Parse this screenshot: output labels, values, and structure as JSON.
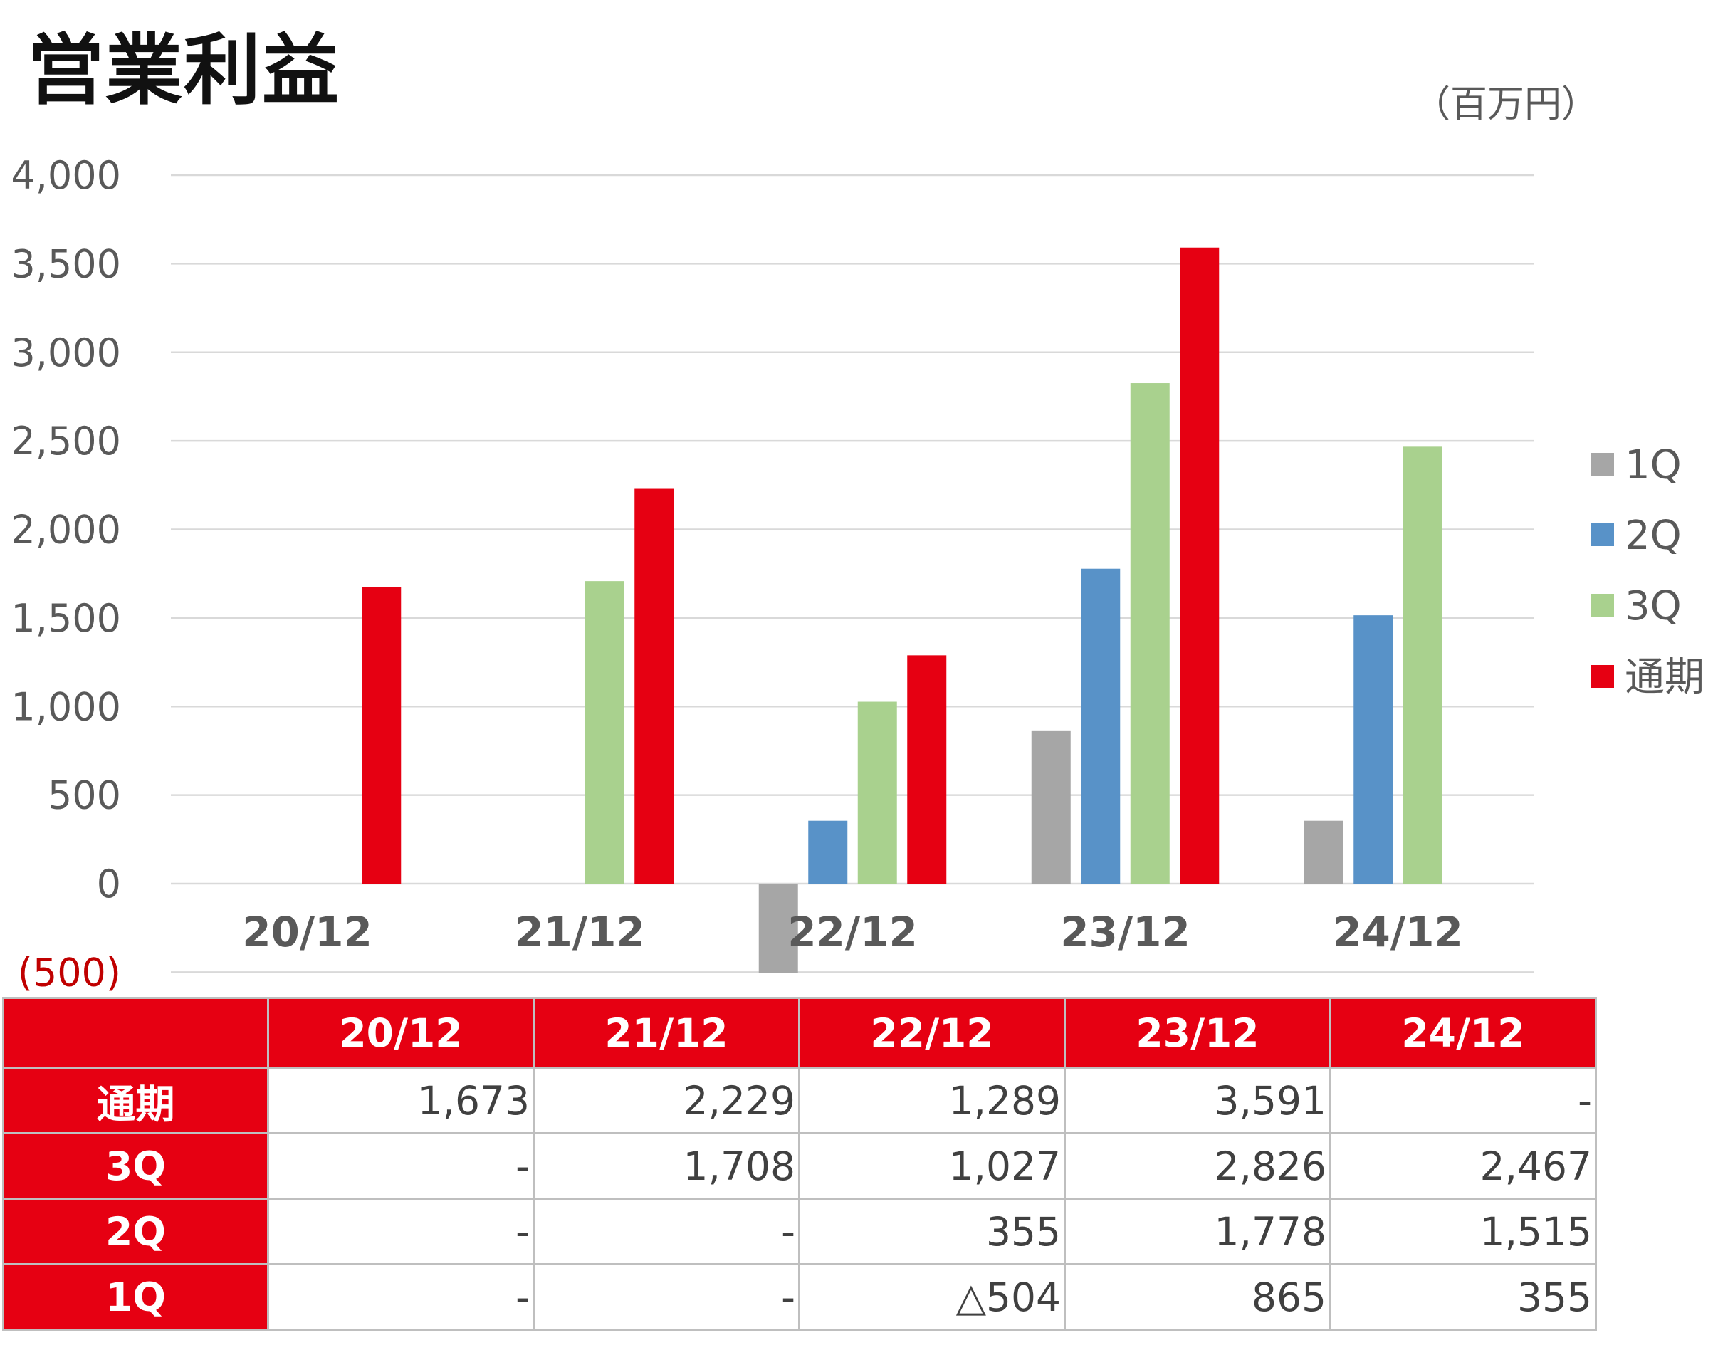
{
  "title": "営業利益",
  "unit_label": "（百万円）",
  "chart_data": {
    "type": "bar",
    "categories": [
      "20/12",
      "21/12",
      "22/12",
      "23/12",
      "24/12"
    ],
    "series": [
      {
        "name": "1Q",
        "color": "#a6a6a6",
        "values": [
          null,
          null,
          -504,
          865,
          355
        ]
      },
      {
        "name": "2Q",
        "color": "#5892c8",
        "values": [
          null,
          null,
          355,
          1778,
          1515
        ]
      },
      {
        "name": "3Q",
        "color": "#a9d18e",
        "values": [
          null,
          1708,
          1027,
          2826,
          2467
        ]
      },
      {
        "name": "通期",
        "color": "#e60012",
        "values": [
          1673,
          2229,
          1289,
          3591,
          null
        ]
      }
    ],
    "ylim": [
      -500,
      4000
    ],
    "yticks": [
      4000,
      3500,
      3000,
      2500,
      2000,
      1500,
      1000,
      500,
      0,
      -500
    ],
    "ytick_labels": [
      "4,000",
      "3,500",
      "3,000",
      "2,500",
      "2,000",
      "1,500",
      "1,000",
      "500",
      "0",
      "(500)"
    ],
    "negative_tick_color": "#c00000",
    "grid": true,
    "legend_position": "right"
  },
  "table": {
    "columns": [
      "20/12",
      "21/12",
      "22/12",
      "23/12",
      "24/12"
    ],
    "rows": [
      {
        "label": "通期",
        "cells": [
          "1,673",
          "2,229",
          "1,289",
          "3,591",
          "-"
        ]
      },
      {
        "label": "3Q",
        "cells": [
          "-",
          "1,708",
          "1,027",
          "2,826",
          "2,467"
        ]
      },
      {
        "label": "2Q",
        "cells": [
          "-",
          "-",
          "355",
          "1,778",
          "1,515"
        ]
      },
      {
        "label": "1Q",
        "cells": [
          "-",
          "-",
          "△504",
          "865",
          "355"
        ]
      }
    ]
  },
  "colors": {
    "accent": "#e60012",
    "grid": "#d9d9d9",
    "axis_text": "#595959"
  }
}
